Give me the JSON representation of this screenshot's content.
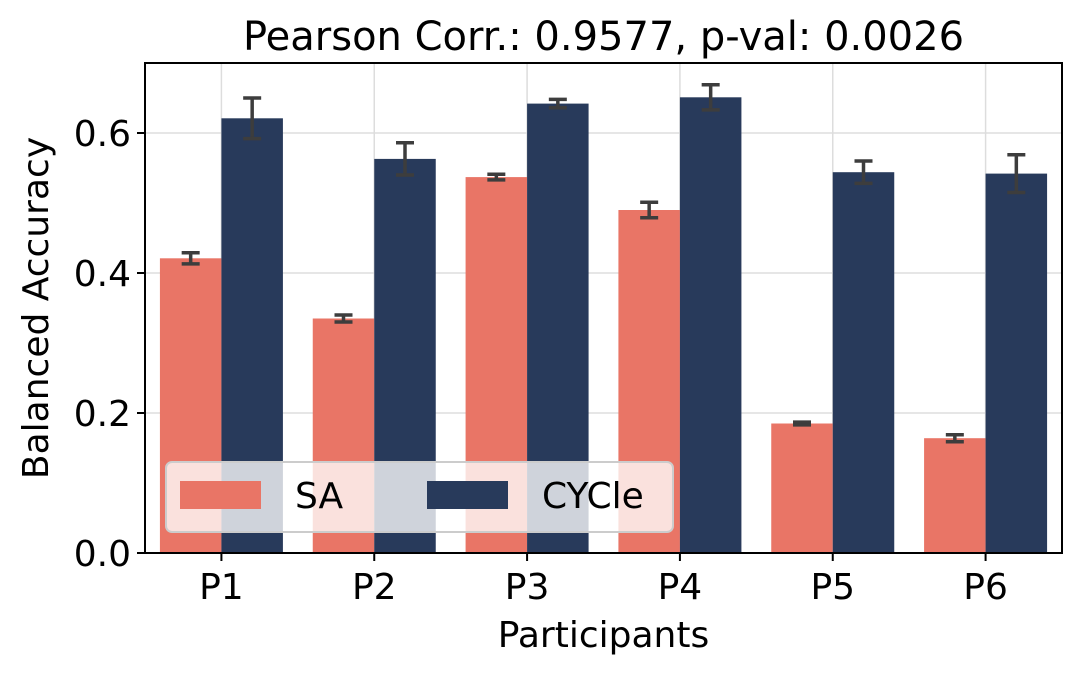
{
  "chart_data": {
    "type": "bar",
    "title": "Pearson Corr.: 0.9577, p-val: 0.0026",
    "xlabel": "Participants",
    "ylabel": "Balanced Accuracy",
    "categories": [
      "P1",
      "P2",
      "P3",
      "P4",
      "P5",
      "P6"
    ],
    "ylim": [
      0,
      0.7
    ],
    "yticks": [
      0.0,
      0.2,
      0.4,
      0.6
    ],
    "ytick_labels": [
      "0.0",
      "0.2",
      "0.4",
      "0.6"
    ],
    "grid": true,
    "legend_position": "lower-left",
    "series": [
      {
        "name": "SA",
        "color": "#e97566",
        "values": [
          0.421,
          0.335,
          0.537,
          0.49,
          0.185,
          0.164
        ],
        "errors": [
          0.008,
          0.005,
          0.004,
          0.011,
          0.002,
          0.005
        ]
      },
      {
        "name": "CYCle",
        "color": "#283a5b",
        "values": [
          0.621,
          0.563,
          0.642,
          0.651,
          0.544,
          0.542
        ],
        "errors": [
          0.029,
          0.023,
          0.006,
          0.018,
          0.016,
          0.027
        ]
      }
    ],
    "error_bar_color": "#3d3d3d"
  }
}
